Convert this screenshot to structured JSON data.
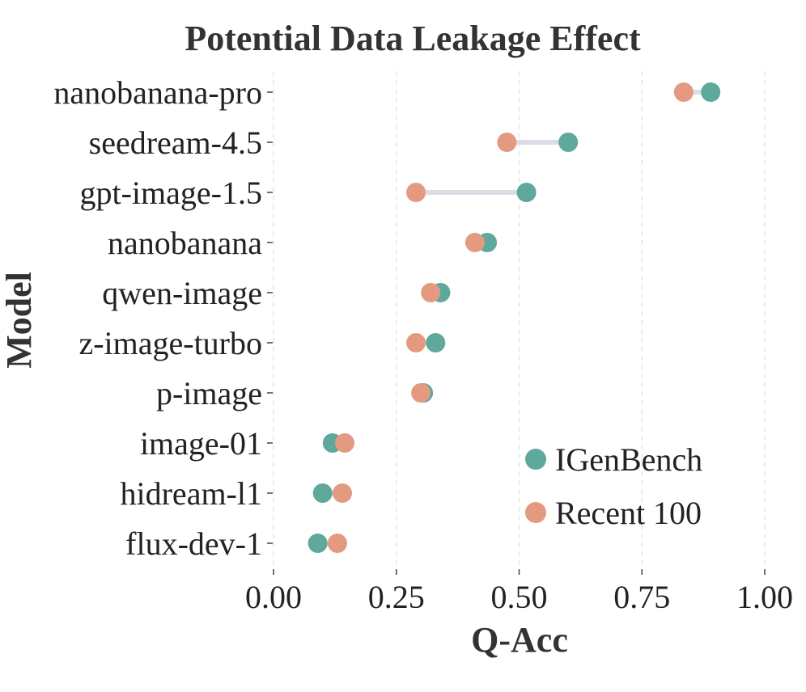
{
  "chart_data": {
    "type": "dumbbell",
    "title": "Potential Data Leakage Effect",
    "xlabel": "Q-Acc",
    "ylabel": "Model",
    "xlim": [
      0,
      1
    ],
    "xticks": [
      "0.00",
      "0.25",
      "0.50",
      "0.75",
      "1.00"
    ],
    "xtick_values": [
      0,
      0.25,
      0.5,
      0.75,
      1.0
    ],
    "grid": "vertical-dashed",
    "legend_position": "bottom-right",
    "categories": [
      "nanobanana-pro",
      "seedream-4.5",
      "gpt-image-1.5",
      "nanobanana",
      "qwen-image",
      "z-image-turbo",
      "p-image",
      "image-01",
      "hidream-l1",
      "flux-dev-1"
    ],
    "series": [
      {
        "name": "IGenBench",
        "color": "#5fa89c",
        "values": [
          0.89,
          0.6,
          0.515,
          0.435,
          0.34,
          0.33,
          0.305,
          0.12,
          0.1,
          0.09
        ]
      },
      {
        "name": "Recent 100",
        "color": "#e49a80",
        "values": [
          0.835,
          0.475,
          0.29,
          0.41,
          0.32,
          0.29,
          0.3,
          0.145,
          0.14,
          0.13
        ]
      }
    ],
    "connector_color": "#dcdbe6"
  }
}
